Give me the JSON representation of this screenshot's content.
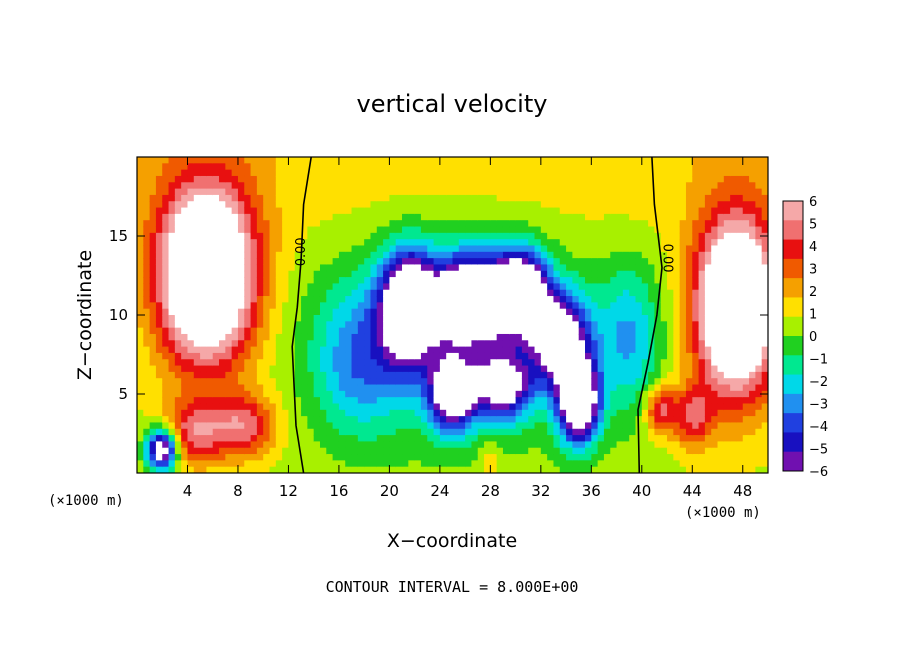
{
  "chart_data": {
    "type": "heatmap",
    "title": "vertical velocity",
    "xlabel": "X−coordinate",
    "ylabel": "Z−coordinate",
    "x_unit_label": "(×1000 m)",
    "xlim": [
      0,
      50
    ],
    "ylim": [
      0,
      20
    ],
    "x_ticks": [
      4,
      8,
      12,
      16,
      20,
      24,
      28,
      32,
      36,
      40,
      44,
      48
    ],
    "y_ticks": [
      5,
      10,
      15
    ],
    "colorbar": {
      "range": [
        -6,
        6
      ],
      "tick_labels": [
        "6",
        "5",
        "4",
        "3",
        "2",
        "1",
        "0",
        "−1",
        "−2",
        "−3",
        "−4",
        "−5",
        "−6"
      ],
      "colors": [
        "#f5a8a8",
        "#f07070",
        "#e81010",
        "#f05a00",
        "#f5a000",
        "#ffe000",
        "#a8f000",
        "#20d020",
        "#00e890",
        "#00d8e8",
        "#2090f0",
        "#2040e0",
        "#1810c0",
        "#7010b0"
      ],
      "out_of_range_color": "#ffffff"
    },
    "contour_labels": [
      "0.00",
      "0.00"
    ],
    "contour_interval_text": "CONTOUR INTERVAL = 8.000E+00"
  }
}
